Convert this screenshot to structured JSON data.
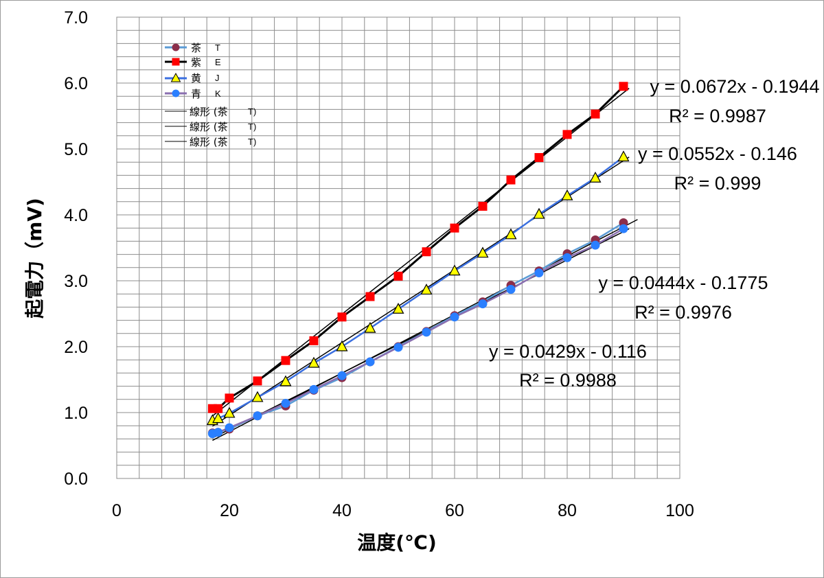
{
  "chart_data": {
    "type": "scatter",
    "xlabel": "温度(℃)",
    "ylabel": "起電力（mV)",
    "xlim": [
      0,
      100
    ],
    "ylim": [
      0,
      7.0
    ],
    "x_ticks": [
      "0",
      "20",
      "40",
      "60",
      "80",
      "100"
    ],
    "y_ticks": [
      "0.0",
      "1.0",
      "2.0",
      "3.0",
      "4.0",
      "5.0",
      "6.0",
      "7.0"
    ],
    "grid": true,
    "legend_position": "top-left",
    "series": [
      {
        "name": "茶",
        "code": "T",
        "color": "#8b2e4a",
        "line_color": "#5b9bd5",
        "marker": "circle",
        "x": [
          17,
          18,
          20,
          25,
          30,
          35,
          40,
          45,
          50,
          55,
          60,
          65,
          70,
          75,
          80,
          85,
          90
        ],
        "y": [
          0.69,
          0.7,
          0.75,
          0.95,
          1.1,
          1.34,
          1.53,
          1.77,
          2.0,
          2.23,
          2.47,
          2.68,
          2.93,
          3.15,
          3.41,
          3.62,
          3.88
        ]
      },
      {
        "name": "紫",
        "code": "E",
        "color": "#ff0000",
        "line_color": "#000000",
        "marker": "square",
        "x": [
          17,
          18,
          20,
          25,
          30,
          35,
          40,
          45,
          50,
          55,
          60,
          65,
          70,
          75,
          80,
          85,
          90
        ],
        "y": [
          1.06,
          1.06,
          1.22,
          1.48,
          1.79,
          2.09,
          2.45,
          2.76,
          3.07,
          3.44,
          3.8,
          4.13,
          4.53,
          4.87,
          5.22,
          5.53,
          5.95
        ]
      },
      {
        "name": "黄",
        "code": "J",
        "color": "#ffff00",
        "line_color": "#3a6fe0",
        "marker": "triangle",
        "x": [
          17,
          18,
          20,
          25,
          30,
          35,
          40,
          45,
          50,
          55,
          60,
          65,
          70,
          75,
          80,
          85,
          90
        ],
        "y": [
          0.88,
          0.91,
          0.99,
          1.23,
          1.47,
          1.75,
          2.0,
          2.28,
          2.57,
          2.86,
          3.15,
          3.42,
          3.7,
          4.01,
          4.29,
          4.56,
          4.88
        ]
      },
      {
        "name": "青",
        "code": "K",
        "color": "#2a7fff",
        "line_color": "#8a6fb0",
        "marker": "circle",
        "x": [
          17,
          18,
          20,
          25,
          30,
          35,
          40,
          45,
          50,
          55,
          60,
          65,
          70,
          75,
          80,
          85,
          90
        ],
        "y": [
          0.68,
          0.7,
          0.77,
          0.95,
          1.14,
          1.35,
          1.56,
          1.77,
          1.99,
          2.22,
          2.45,
          2.65,
          2.87,
          3.12,
          3.35,
          3.54,
          3.79
        ]
      }
    ],
    "trendlines": [
      {
        "label": "線形 (茶",
        "code": "T)",
        "slope": 0.0672,
        "intercept": -0.1944,
        "x_range": [
          17,
          91
        ]
      },
      {
        "label": "線形 (茶",
        "code": "T)",
        "slope": 0.0552,
        "intercept": -0.146,
        "x_range": [
          17,
          91
        ]
      },
      {
        "label": "線形 (茶",
        "code": "T)",
        "slope": 0.0444,
        "intercept": -0.1775,
        "x_range": [
          17,
          92.5
        ]
      },
      {
        "label": null,
        "code": null,
        "slope": 0.0429,
        "intercept": -0.116,
        "x_range": [
          17,
          91
        ]
      }
    ],
    "annotations": [
      {
        "eq": "y = 0.0672x - 0.1944",
        "r2": "R² = 0.9987"
      },
      {
        "eq": "y = 0.0552x - 0.146",
        "r2": "R² = 0.999"
      },
      {
        "eq": "y = 0.0444x - 0.1775",
        "r2": "R² = 0.9976"
      },
      {
        "eq": "y = 0.0429x - 0.116",
        "r2": "R² = 0.9988"
      }
    ]
  }
}
